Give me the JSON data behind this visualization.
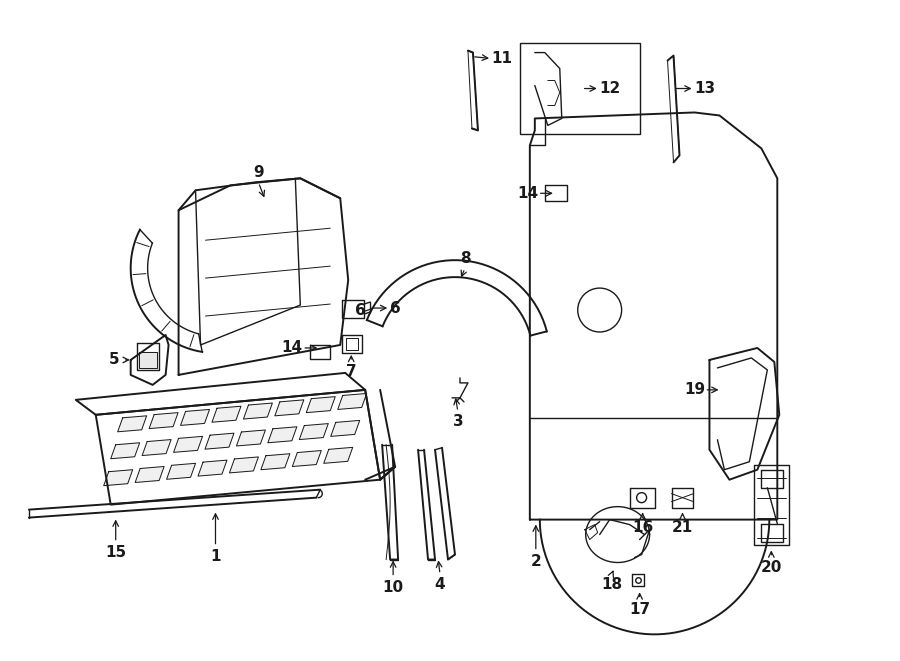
{
  "background_color": "#ffffff",
  "line_color": "#1a1a1a",
  "figsize": [
    9.0,
    6.61
  ],
  "dpi": 100,
  "lw_heavy": 1.4,
  "lw_medium": 1.0,
  "lw_light": 0.7
}
